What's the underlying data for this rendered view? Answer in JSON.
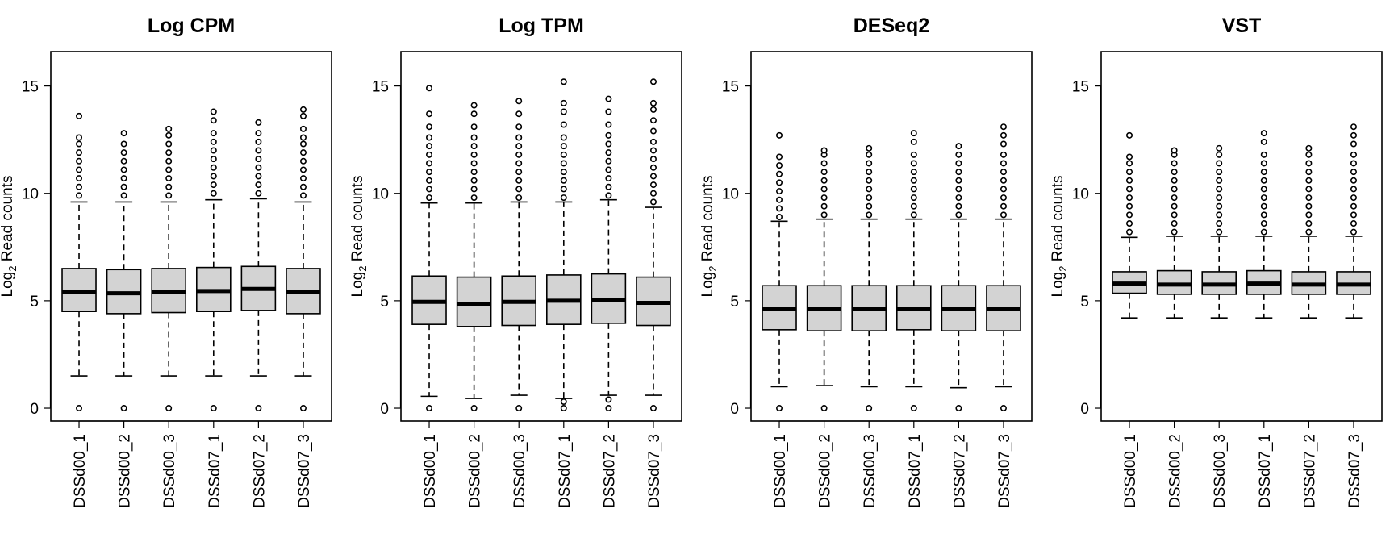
{
  "figure": {
    "ylabel_pre": "Log",
    "ylabel_sub": "2",
    "ylabel_post": " Read counts"
  },
  "chart_data": [
    {
      "type": "box",
      "title": "Log CPM",
      "ylabel": "Log2 Read counts",
      "ylim": [
        -0.6,
        16.6
      ],
      "yticks": [
        0,
        5,
        10,
        15
      ],
      "grid": false,
      "legend": "none",
      "categories": [
        "DSSd00_1",
        "DSSd00_2",
        "DSSd00_3",
        "DSSd07_1",
        "DSSd07_2",
        "DSSd07_3"
      ],
      "boxes": [
        {
          "low": 1.5,
          "q1": 4.5,
          "median": 5.4,
          "q3": 6.5,
          "high": 9.6,
          "outliers": [
            0,
            9.9,
            10.3,
            10.7,
            11.1,
            11.5,
            11.9,
            12.3,
            12.6,
            13.6
          ]
        },
        {
          "low": 1.5,
          "q1": 4.4,
          "median": 5.35,
          "q3": 6.45,
          "high": 9.6,
          "outliers": [
            0,
            9.9,
            10.3,
            10.7,
            11.1,
            11.5,
            11.9,
            12.3,
            12.8
          ]
        },
        {
          "low": 1.5,
          "q1": 4.45,
          "median": 5.4,
          "q3": 6.5,
          "high": 9.6,
          "outliers": [
            0,
            9.9,
            10.3,
            10.7,
            11.1,
            11.5,
            11.9,
            12.3,
            12.7,
            13.0
          ]
        },
        {
          "low": 1.5,
          "q1": 4.5,
          "median": 5.45,
          "q3": 6.55,
          "high": 9.7,
          "outliers": [
            0,
            10.0,
            10.4,
            10.8,
            11.2,
            11.6,
            12.0,
            12.4,
            12.8,
            13.4,
            13.8
          ]
        },
        {
          "low": 1.5,
          "q1": 4.55,
          "median": 5.55,
          "q3": 6.6,
          "high": 9.75,
          "outliers": [
            0,
            10.0,
            10.4,
            10.8,
            11.2,
            11.6,
            12.0,
            12.4,
            12.8,
            13.3
          ]
        },
        {
          "low": 1.5,
          "q1": 4.4,
          "median": 5.4,
          "q3": 6.5,
          "high": 9.6,
          "outliers": [
            0,
            9.9,
            10.3,
            10.7,
            11.1,
            11.5,
            11.9,
            12.3,
            12.6,
            13.0,
            13.6,
            13.9
          ]
        }
      ]
    },
    {
      "type": "box",
      "title": "Log TPM",
      "ylabel": "Log2 Read counts",
      "ylim": [
        -0.6,
        16.6
      ],
      "yticks": [
        0,
        5,
        10,
        15
      ],
      "grid": false,
      "legend": "none",
      "categories": [
        "DSSd00_1",
        "DSSd00_2",
        "DSSd00_3",
        "DSSd07_1",
        "DSSd07_2",
        "DSSd07_3"
      ],
      "boxes": [
        {
          "low": 0.55,
          "q1": 3.9,
          "median": 4.95,
          "q3": 6.15,
          "high": 9.55,
          "outliers": [
            0,
            9.8,
            10.2,
            10.6,
            11.0,
            11.4,
            11.8,
            12.2,
            12.6,
            13.1,
            13.7,
            14.9
          ]
        },
        {
          "low": 0.45,
          "q1": 3.8,
          "median": 4.85,
          "q3": 6.1,
          "high": 9.55,
          "outliers": [
            0,
            9.8,
            10.2,
            10.6,
            11.0,
            11.4,
            11.8,
            12.2,
            12.6,
            13.1,
            13.7,
            14.1
          ]
        },
        {
          "low": 0.6,
          "q1": 3.85,
          "median": 4.95,
          "q3": 6.15,
          "high": 9.6,
          "outliers": [
            0,
            9.8,
            10.2,
            10.6,
            11.0,
            11.4,
            11.8,
            12.2,
            12.6,
            13.1,
            13.7,
            14.3
          ]
        },
        {
          "low": 0.45,
          "q1": 3.9,
          "median": 5.0,
          "q3": 6.2,
          "high": 9.6,
          "outliers": [
            0,
            0.3,
            9.8,
            10.2,
            10.6,
            11.0,
            11.4,
            11.8,
            12.2,
            12.6,
            13.2,
            13.8,
            14.2,
            15.2
          ]
        },
        {
          "low": 0.6,
          "q1": 3.95,
          "median": 5.05,
          "q3": 6.25,
          "high": 9.7,
          "outliers": [
            0,
            0.4,
            9.9,
            10.3,
            10.7,
            11.1,
            11.5,
            11.9,
            12.3,
            12.7,
            13.2,
            13.8,
            14.4
          ]
        },
        {
          "low": 0.6,
          "q1": 3.85,
          "median": 4.9,
          "q3": 6.1,
          "high": 9.35,
          "outliers": [
            0,
            9.6,
            10.0,
            10.4,
            10.8,
            11.2,
            11.6,
            12.0,
            12.4,
            12.9,
            13.4,
            13.9,
            14.2,
            15.2
          ]
        }
      ]
    },
    {
      "type": "box",
      "title": "DESeq2",
      "ylabel": "Log2 Read counts",
      "ylim": [
        -0.6,
        16.6
      ],
      "yticks": [
        0,
        5,
        10,
        15
      ],
      "grid": false,
      "legend": "none",
      "categories": [
        "DSSd00_1",
        "DSSd00_2",
        "DSSd00_3",
        "DSSd07_1",
        "DSSd07_2",
        "DSSd07_3"
      ],
      "boxes": [
        {
          "low": 1.0,
          "q1": 3.65,
          "median": 4.6,
          "q3": 5.7,
          "high": 8.7,
          "outliers": [
            0,
            8.9,
            9.3,
            9.7,
            10.1,
            10.5,
            10.9,
            11.3,
            11.7,
            12.7
          ]
        },
        {
          "low": 1.05,
          "q1": 3.6,
          "median": 4.6,
          "q3": 5.7,
          "high": 8.8,
          "outliers": [
            0,
            9.0,
            9.4,
            9.8,
            10.2,
            10.6,
            11.0,
            11.4,
            11.8,
            12.0
          ]
        },
        {
          "low": 1.0,
          "q1": 3.6,
          "median": 4.6,
          "q3": 5.7,
          "high": 8.8,
          "outliers": [
            0,
            9.0,
            9.4,
            9.8,
            10.2,
            10.6,
            11.0,
            11.4,
            11.8,
            12.1
          ]
        },
        {
          "low": 1.0,
          "q1": 3.65,
          "median": 4.6,
          "q3": 5.7,
          "high": 8.8,
          "outliers": [
            0,
            9.0,
            9.4,
            9.8,
            10.2,
            10.6,
            11.0,
            11.4,
            11.8,
            12.4,
            12.8
          ]
        },
        {
          "low": 0.95,
          "q1": 3.6,
          "median": 4.6,
          "q3": 5.7,
          "high": 8.8,
          "outliers": [
            0,
            9.0,
            9.4,
            9.8,
            10.2,
            10.6,
            11.0,
            11.4,
            11.8,
            12.2
          ]
        },
        {
          "low": 1.0,
          "q1": 3.6,
          "median": 4.6,
          "q3": 5.7,
          "high": 8.8,
          "outliers": [
            0,
            9.0,
            9.4,
            9.8,
            10.2,
            10.6,
            11.0,
            11.4,
            11.8,
            12.3,
            12.7,
            13.1
          ]
        }
      ]
    },
    {
      "type": "box",
      "title": "VST",
      "ylabel": "Log2 Read counts",
      "ylim": [
        -0.6,
        16.6
      ],
      "yticks": [
        0,
        5,
        10,
        15
      ],
      "grid": false,
      "legend": "none",
      "categories": [
        "DSSd00_1",
        "DSSd00_2",
        "DSSd00_3",
        "DSSd07_1",
        "DSSd07_2",
        "DSSd07_3"
      ],
      "boxes": [
        {
          "low": 4.2,
          "q1": 5.35,
          "median": 5.8,
          "q3": 6.35,
          "high": 7.95,
          "outliers": [
            8.2,
            8.6,
            9.0,
            9.4,
            9.8,
            10.2,
            10.6,
            11.0,
            11.4,
            11.7,
            12.7
          ]
        },
        {
          "low": 4.2,
          "q1": 5.3,
          "median": 5.75,
          "q3": 6.4,
          "high": 8.0,
          "outliers": [
            8.2,
            8.6,
            9.0,
            9.4,
            9.8,
            10.2,
            10.6,
            11.0,
            11.4,
            11.8,
            12.0
          ]
        },
        {
          "low": 4.2,
          "q1": 5.3,
          "median": 5.75,
          "q3": 6.35,
          "high": 8.0,
          "outliers": [
            8.2,
            8.6,
            9.0,
            9.4,
            9.8,
            10.2,
            10.6,
            11.0,
            11.4,
            11.8,
            12.1
          ]
        },
        {
          "low": 4.2,
          "q1": 5.3,
          "median": 5.8,
          "q3": 6.4,
          "high": 8.0,
          "outliers": [
            8.2,
            8.6,
            9.0,
            9.4,
            9.8,
            10.2,
            10.6,
            11.0,
            11.4,
            11.8,
            12.4,
            12.8
          ]
        },
        {
          "low": 4.2,
          "q1": 5.3,
          "median": 5.75,
          "q3": 6.35,
          "high": 8.0,
          "outliers": [
            8.2,
            8.6,
            9.0,
            9.4,
            9.8,
            10.2,
            10.6,
            11.0,
            11.4,
            11.8,
            12.1
          ]
        },
        {
          "low": 4.2,
          "q1": 5.3,
          "median": 5.75,
          "q3": 6.35,
          "high": 8.0,
          "outliers": [
            8.2,
            8.6,
            9.0,
            9.4,
            9.8,
            10.2,
            10.6,
            11.0,
            11.4,
            11.8,
            12.3,
            12.7,
            13.1
          ]
        }
      ]
    }
  ]
}
